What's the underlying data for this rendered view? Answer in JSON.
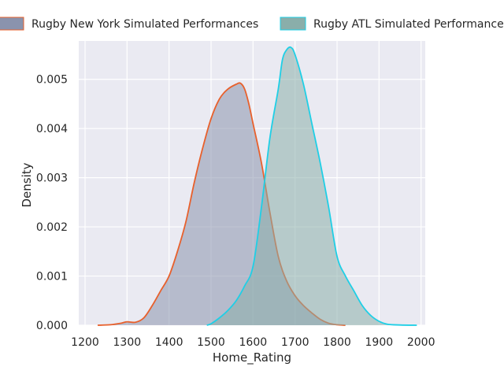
{
  "chart_data": {
    "type": "area",
    "xlabel": "Home_Rating",
    "ylabel": "Density",
    "xlim": [
      1185,
      2010
    ],
    "ylim": [
      0,
      0.00578
    ],
    "x_ticks": [
      1200,
      1300,
      1400,
      1500,
      1600,
      1700,
      1800,
      1900,
      2000
    ],
    "y_ticks": [
      0.0,
      0.001,
      0.002,
      0.003,
      0.004,
      0.005
    ],
    "y_tick_labels": [
      "0.000",
      "0.001",
      "0.002",
      "0.003",
      "0.004",
      "0.005"
    ],
    "x_tick_labels": [
      "1200",
      "1300",
      "1400",
      "1500",
      "1600",
      "1700",
      "1800",
      "1900",
      "2000"
    ],
    "grid": true,
    "legend_placement": "top",
    "background": "#eaeaf2",
    "series": [
      {
        "name": "Rugby New York Simulated Performances",
        "line_color": "#e8602c",
        "fill_color": "#8a93ad",
        "x": [
          1230,
          1260,
          1285,
          1300,
          1320,
          1340,
          1360,
          1380,
          1400,
          1420,
          1440,
          1460,
          1480,
          1500,
          1520,
          1540,
          1560,
          1570,
          1580,
          1590,
          1600,
          1620,
          1640,
          1660,
          1680,
          1700,
          1720,
          1740,
          1760,
          1780,
          1800,
          1820
        ],
        "y": [
          0.0,
          1e-05,
          4e-05,
          7e-05,
          6e-05,
          0.00015,
          0.0004,
          0.0007,
          0.001,
          0.0015,
          0.0021,
          0.0029,
          0.0036,
          0.0042,
          0.0046,
          0.0048,
          0.0049,
          0.00492,
          0.0048,
          0.0045,
          0.0041,
          0.0033,
          0.0023,
          0.0014,
          0.0009,
          0.0006,
          0.0004,
          0.00025,
          0.00012,
          4e-05,
          1e-05,
          0.0
        ]
      },
      {
        "name": "Rugby ATL Simulated Performances",
        "line_color": "#1fcfe6",
        "fill_color": "#8aaeaa",
        "x": [
          1490,
          1500,
          1520,
          1540,
          1560,
          1580,
          1600,
          1620,
          1640,
          1660,
          1670,
          1680,
          1690,
          1700,
          1720,
          1740,
          1760,
          1780,
          1800,
          1820,
          1840,
          1860,
          1880,
          1900,
          1920,
          1950,
          1990
        ],
        "y": [
          0.0,
          3e-05,
          0.00015,
          0.0003,
          0.0005,
          0.0008,
          0.0012,
          0.0024,
          0.0038,
          0.0048,
          0.0054,
          0.0056,
          0.00565,
          0.0055,
          0.0049,
          0.0041,
          0.0033,
          0.0024,
          0.0014,
          0.001,
          0.0007,
          0.0004,
          0.0002,
          8e-05,
          2e-05,
          5e-06,
          0.0
        ]
      }
    ]
  }
}
